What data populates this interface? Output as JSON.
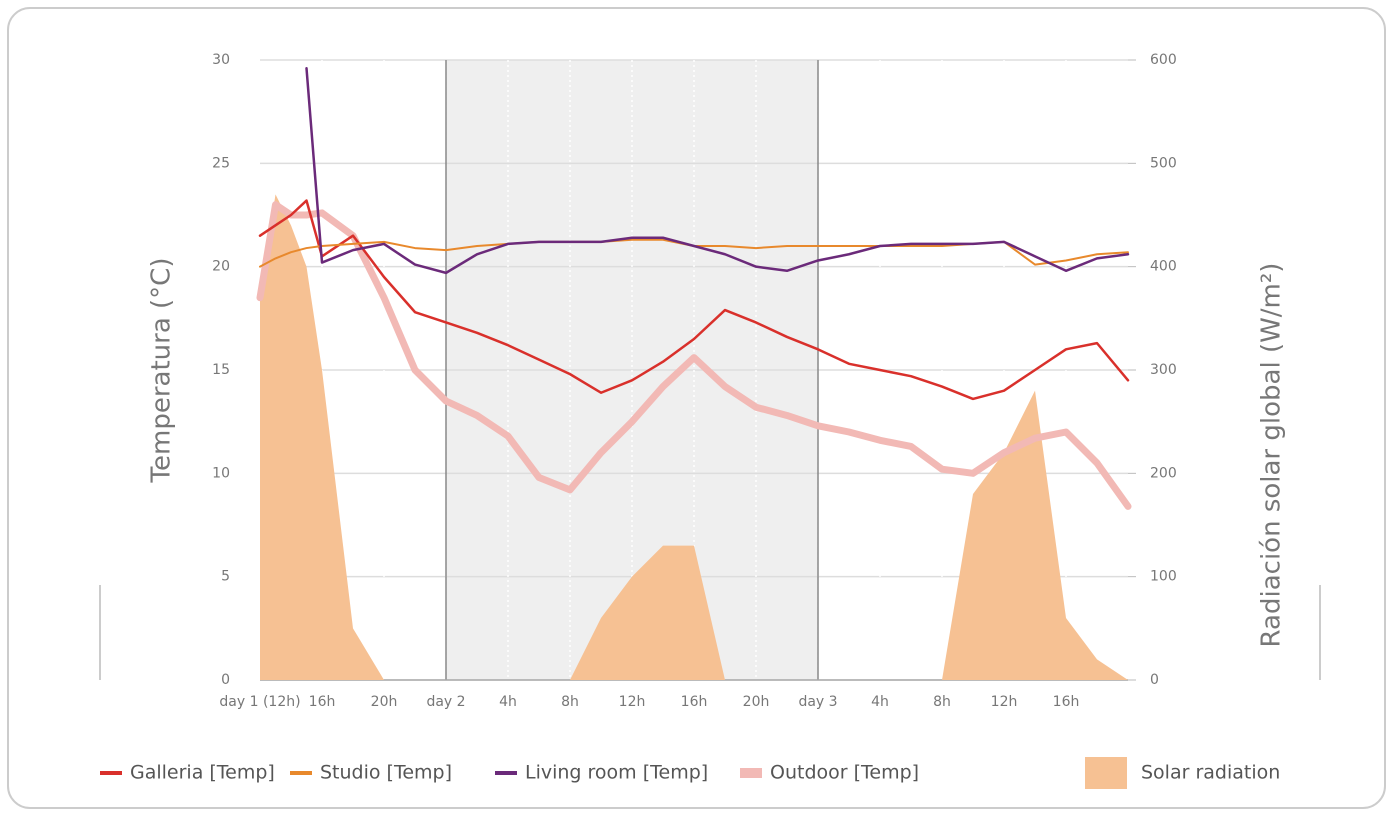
{
  "chart_data": {
    "type": "line",
    "ylabel": "Temperatura (°C)",
    "y2label": "Radiación solar global (W/m²)",
    "x": [
      0,
      1,
      2,
      3,
      4,
      6,
      8,
      10,
      12,
      14,
      16,
      18,
      20,
      22,
      24,
      26,
      28,
      30,
      32,
      34,
      36,
      38,
      40,
      42,
      44,
      46,
      48,
      50,
      52,
      54,
      56
    ],
    "xlim": [
      0,
      56
    ],
    "xticks": [
      {
        "value": 0,
        "label": "day 1 (12h)"
      },
      {
        "value": 4,
        "label": "16h"
      },
      {
        "value": 8,
        "label": "20h"
      },
      {
        "value": 12,
        "label": "day 2"
      },
      {
        "value": 16,
        "label": "4h"
      },
      {
        "value": 20,
        "label": "8h"
      },
      {
        "value": 24,
        "label": "12h"
      },
      {
        "value": 28,
        "label": "16h"
      },
      {
        "value": 32,
        "label": "20h"
      },
      {
        "value": 36,
        "label": "day 3"
      },
      {
        "value": 40,
        "label": "4h"
      },
      {
        "value": 44,
        "label": "8h"
      },
      {
        "value": 48,
        "label": "12h"
      },
      {
        "value": 52,
        "label": "16h"
      }
    ],
    "ylim": [
      0,
      30
    ],
    "yticks": [
      0,
      5,
      10,
      15,
      20,
      25,
      30
    ],
    "y2lim": [
      0,
      600
    ],
    "y2ticks": [
      0,
      100,
      200,
      300,
      400,
      500,
      600
    ],
    "shaded_range": [
      12,
      36
    ],
    "grid": true,
    "legend": "bottom",
    "series": [
      {
        "name": "Solar radiation",
        "color": "#f6c193",
        "style": "area",
        "axis": "y2",
        "values": [
          370,
          470,
          440,
          400,
          300,
          50,
          0,
          0,
          0,
          0,
          0,
          0,
          0,
          60,
          100,
          130,
          130,
          0,
          0,
          0,
          0,
          0,
          0,
          0,
          0,
          180,
          220,
          280,
          60,
          20,
          0
        ]
      },
      {
        "name": "Outdoor [Temp]",
        "color": "#f2b9b5",
        "style": "line",
        "line_width": 7,
        "values": [
          18.5,
          23,
          22.5,
          22.5,
          22.6,
          21.5,
          18.5,
          15,
          13.5,
          12.8,
          11.8,
          9.8,
          9.2,
          11,
          12.5,
          14.2,
          15.6,
          14.2,
          13.2,
          12.8,
          12.3,
          12,
          11.6,
          11.3,
          10.2,
          10,
          11,
          11.7,
          12,
          10.5,
          8.4
        ]
      },
      {
        "name": "Galleria [Temp]",
        "color": "#d9302b",
        "style": "line",
        "line_width": 2.5,
        "values": [
          21.5,
          22,
          22.5,
          23.2,
          20.5,
          21.5,
          19.5,
          17.8,
          17.3,
          16.8,
          16.2,
          15.5,
          14.8,
          13.9,
          14.5,
          15.4,
          16.5,
          17.9,
          17.3,
          16.6,
          16,
          15.3,
          15,
          14.7,
          14.2,
          13.6,
          14,
          15,
          16,
          16.3,
          14.5
        ]
      },
      {
        "name": "Studio [Temp]",
        "color": "#e8892c",
        "style": "line",
        "line_width": 2,
        "values": [
          20,
          20.4,
          20.7,
          20.9,
          21,
          21.1,
          21.2,
          20.9,
          20.8,
          21,
          21.1,
          21.2,
          21.2,
          21.2,
          21.3,
          21.3,
          21,
          21,
          20.9,
          21,
          21,
          21,
          21,
          21,
          21,
          21.1,
          21.2,
          20.1,
          20.3,
          20.6,
          20.7
        ]
      },
      {
        "name": "Living room [Temp]",
        "color": "#6b2a7a",
        "style": "line",
        "line_width": 2.5,
        "values": [
          null,
          null,
          null,
          29.6,
          20.2,
          20.8,
          21.1,
          20.1,
          19.7,
          20.6,
          21.1,
          21.2,
          21.2,
          21.2,
          21.4,
          21.4,
          21,
          20.6,
          20,
          19.8,
          20.3,
          20.6,
          21,
          21.1,
          21.1,
          21.1,
          21.2,
          20.5,
          19.8,
          20.4,
          20.6
        ]
      }
    ]
  }
}
